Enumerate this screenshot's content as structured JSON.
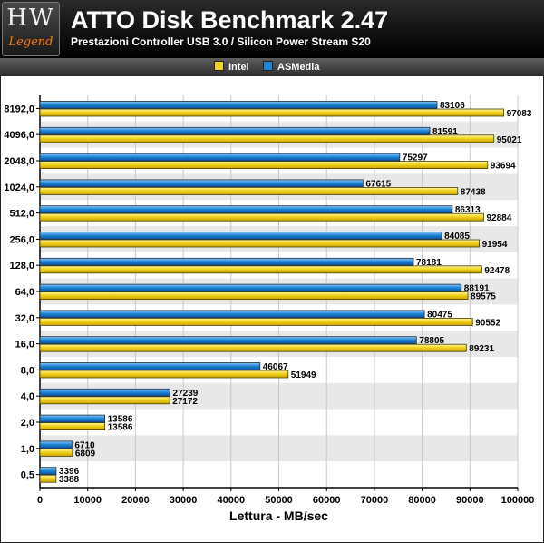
{
  "header": {
    "logo_hw": "HW",
    "logo_legend": "Legend",
    "title": "ATTO Disk Benchmark 2.47",
    "subtitle": "Prestazioni Controller USB 3.0 / Silicon Power Stream S20"
  },
  "colors": {
    "intel": "#f2d21a",
    "asmedia": "#1e86d8",
    "band": "#e8e8e8"
  },
  "chart_data": {
    "type": "bar",
    "orientation": "horizontal",
    "title": "ATTO Disk Benchmark 2.47",
    "subtitle": "Prestazioni Controller USB 3.0 / Silicon Power Stream S20",
    "xlabel": "Lettura - MB/sec",
    "ylabel": "",
    "xlim": [
      0,
      100000
    ],
    "xticks": [
      "0",
      "10000",
      "20000",
      "30000",
      "40000",
      "50000",
      "60000",
      "70000",
      "80000",
      "90000",
      "100000"
    ],
    "categories": [
      "8192,0",
      "4096,0",
      "2048,0",
      "1024,0",
      "512,0",
      "256,0",
      "128,0",
      "64,0",
      "32,0",
      "16,0",
      "8,0",
      "4,0",
      "2,0",
      "1,0",
      "0,5"
    ],
    "legend_position": "top-center",
    "series": [
      {
        "name": "Intel",
        "values": [
          97083,
          95021,
          93694,
          87438,
          92884,
          91954,
          92478,
          89575,
          90552,
          89231,
          51949,
          27172,
          13586,
          6809,
          3388
        ]
      },
      {
        "name": "ASMedia",
        "values": [
          83106,
          81591,
          75297,
          67615,
          86313,
          84085,
          78181,
          88191,
          80475,
          78805,
          46067,
          27239,
          13586,
          6710,
          3396
        ]
      }
    ]
  }
}
